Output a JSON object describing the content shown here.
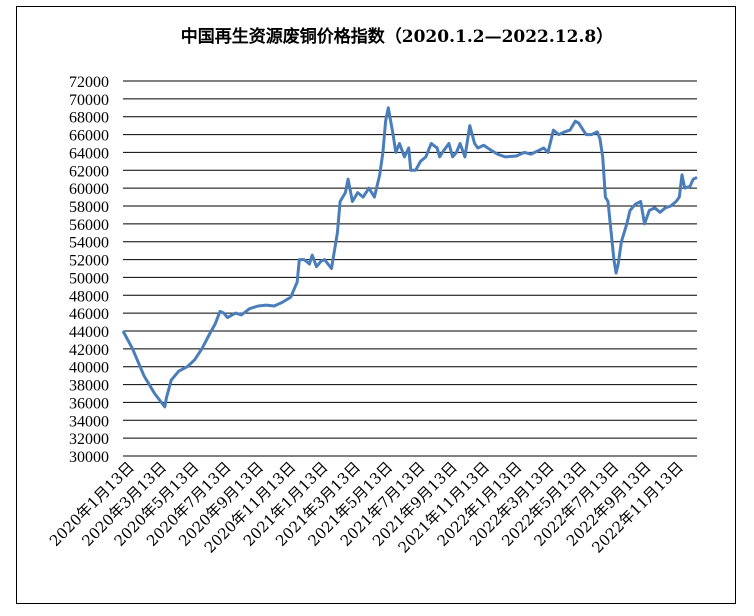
{
  "chart_data": {
    "type": "line",
    "title": "中国再生资源废铜价格指数（2020.1.2—2022.12.8）",
    "xlabel": "",
    "ylabel": "",
    "ylim": [
      30000,
      72000
    ],
    "y_ticks": [
      "30000",
      "32000",
      "34000",
      "36000",
      "38000",
      "40000",
      "42000",
      "44000",
      "46000",
      "48000",
      "50000",
      "52000",
      "54000",
      "56000",
      "58000",
      "60000",
      "62000",
      "64000",
      "66000",
      "68000",
      "70000",
      "72000"
    ],
    "x_ticks": [
      "2020年1月13日",
      "2020年3月13日",
      "2020年5月13日",
      "2020年7月13日",
      "2020年9月13日",
      "2020年11月13日",
      "2021年1月13日",
      "2021年3月13日",
      "2021年5月13日",
      "2021年7月13日",
      "2021年9月13日",
      "2021年11月13日",
      "2022年1月13日",
      "2022年3月13日",
      "2022年5月13日",
      "2022年7月13日",
      "2022年9月13日",
      "2022年11月13日"
    ],
    "grid": "horizontal",
    "line_color": "#4a7ebb",
    "series": [
      {
        "x": [
          "2020-01-02",
          "2020-01-20",
          "2020-02-10",
          "2020-03-01",
          "2020-03-20",
          "2020-03-23",
          "2020-04-01",
          "2020-04-15",
          "2020-05-01",
          "2020-05-15",
          "2020-05-28",
          "2020-06-10",
          "2020-06-22",
          "2020-07-01",
          "2020-07-08",
          "2020-07-15",
          "2020-07-30",
          "2020-08-10",
          "2020-08-25",
          "2020-09-10",
          "2020-09-25",
          "2020-10-10",
          "2020-10-25",
          "2020-11-10",
          "2020-11-22",
          "2020-11-26",
          "2020-12-05",
          "2020-12-15",
          "2020-12-20",
          "2020-12-28",
          "2021-01-05",
          "2021-01-12",
          "2021-01-25",
          "2021-02-05",
          "2021-02-10",
          "2021-02-20",
          "2021-02-25",
          "2021-03-05",
          "2021-03-15",
          "2021-03-25",
          "2021-04-05",
          "2021-04-15",
          "2021-04-25",
          "2021-05-01",
          "2021-05-06",
          "2021-05-11",
          "2021-05-20",
          "2021-05-25",
          "2021-06-01",
          "2021-06-10",
          "2021-06-18",
          "2021-06-22",
          "2021-07-01",
          "2021-07-10",
          "2021-07-20",
          "2021-07-30",
          "2021-08-10",
          "2021-08-15",
          "2021-08-20",
          "2021-09-01",
          "2021-09-08",
          "2021-09-15",
          "2021-09-22",
          "2021-10-01",
          "2021-10-10",
          "2021-10-19",
          "2021-10-25",
          "2021-11-05",
          "2021-11-20",
          "2021-12-01",
          "2021-12-15",
          "2022-01-05",
          "2022-01-20",
          "2022-02-01",
          "2022-02-15",
          "2022-02-25",
          "2022-03-05",
          "2022-03-15",
          "2022-03-25",
          "2022-04-05",
          "2022-04-15",
          "2022-04-25",
          "2022-05-01",
          "2022-05-15",
          "2022-05-25",
          "2022-06-05",
          "2022-06-10",
          "2022-06-15",
          "2022-06-20",
          "2022-06-25",
          "2022-07-01",
          "2022-07-06",
          "2022-07-10",
          "2022-07-14",
          "2022-07-20",
          "2022-07-30",
          "2022-08-05",
          "2022-08-15",
          "2022-08-25",
          "2022-09-01",
          "2022-09-10",
          "2022-09-20",
          "2022-09-30",
          "2022-10-10",
          "2022-10-20",
          "2022-10-30",
          "2022-11-05",
          "2022-11-10",
          "2022-11-15",
          "2022-11-25",
          "2022-12-01",
          "2022-12-08"
        ],
        "values": [
          44000,
          42000,
          39000,
          37000,
          35500,
          36500,
          38500,
          39500,
          40000,
          40800,
          42000,
          43500,
          44800,
          46200,
          46000,
          45500,
          46000,
          45800,
          46500,
          46800,
          46900,
          46800,
          47200,
          47800,
          49500,
          52000,
          52000,
          51500,
          52500,
          51200,
          51800,
          52000,
          51000,
          55000,
          58500,
          59500,
          61000,
          58500,
          59500,
          59000,
          60000,
          59000,
          61500,
          64000,
          67500,
          69000,
          66000,
          64000,
          65000,
          63500,
          64500,
          62000,
          62000,
          63000,
          63500,
          65000,
          64500,
          63500,
          64000,
          65000,
          63500,
          64000,
          65000,
          63500,
          67000,
          65000,
          64500,
          64800,
          64200,
          63800,
          63500,
          63600,
          64000,
          63800,
          64200,
          64500,
          64000,
          66500,
          66000,
          66300,
          66500,
          67500,
          67300,
          66000,
          66000,
          66300,
          65500,
          63500,
          59000,
          58500,
          55000,
          52000,
          50500,
          51500,
          54000,
          56000,
          57500,
          58200,
          58500,
          56000,
          57500,
          57800,
          57300,
          57800,
          58000,
          58500,
          59000,
          61500,
          60000,
          60200,
          61000,
          61200
        ]
      }
    ]
  }
}
